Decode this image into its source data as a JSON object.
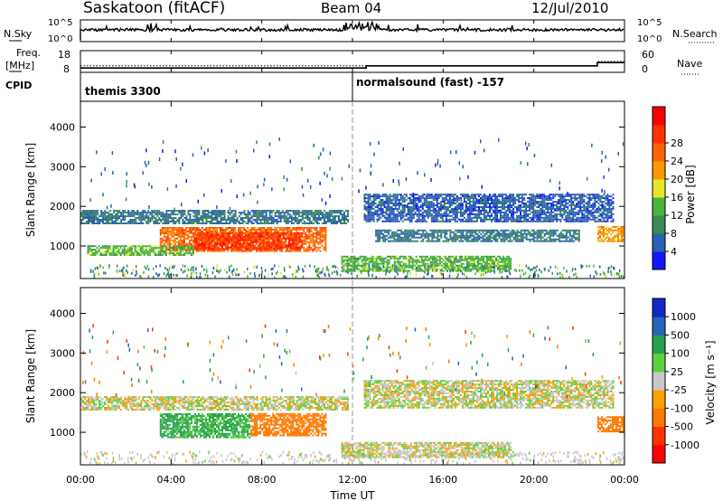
{
  "header": {
    "station": "Saskatoon (fitACF)",
    "beam": "Beam 04",
    "date": "12/Jul/2010"
  },
  "top_panels": {
    "noise_left_label": "N.Sky",
    "noise_right_label": "N.Search",
    "noise_left_ticks": [
      "10^5",
      "10^0"
    ],
    "noise_right_ticks": [
      "10^5",
      "10^0"
    ],
    "freq_label_1": "Freq.",
    "freq_label_2": "[MHz]",
    "freq_ticks": [
      "18",
      "8"
    ],
    "nave_label": "Nave",
    "nave_ticks": [
      "60",
      "0"
    ],
    "cpid_label": "CPID",
    "cpid_modes": [
      {
        "name": "themis 3300",
        "start_hour": 0
      },
      {
        "name": "normalsound (fast) -157",
        "start_hour": 12
      }
    ]
  },
  "axes": {
    "time_label": "Time UT",
    "time_ticks": [
      "00:00",
      "04:00",
      "08:00",
      "12:00",
      "16:00",
      "20:00",
      "00:00"
    ],
    "range_label": "Slant Range [km]",
    "range_ticks": [
      "1000",
      "2000",
      "3000",
      "4000"
    ],
    "range_min_km": 180,
    "range_max_km": 4650,
    "time_range_hours": [
      0,
      24
    ]
  },
  "power_colorbar": {
    "label": "Power [dB]",
    "ticks": [
      "4",
      "8",
      "12",
      "16",
      "20",
      "24",
      "28"
    ],
    "colors": [
      "#1414ff",
      "#2a5fb4",
      "#3a8a5a",
      "#48b43c",
      "#e6e628",
      "#ff9600",
      "#ff6400",
      "#ff3200",
      "#ff0000"
    ]
  },
  "velocity_colorbar": {
    "label": "Velocity [m s⁻¹]",
    "ticks": [
      "1000",
      "500",
      "100",
      "25",
      "-25",
      "-100",
      "-500",
      "-1000"
    ],
    "colors": [
      "#1428c8",
      "#2864b4",
      "#28a050",
      "#5ad23c",
      "#c8c8c8",
      "#ffa000",
      "#ff7800",
      "#ff3200",
      "#ff0000"
    ]
  },
  "chart_data": {
    "type": "heatmap",
    "description_free": true,
    "power_echo_regions_db": [
      {
        "t_start": 0.0,
        "t_end": 11.8,
        "range_km": [
          1550,
          1900
        ],
        "power_db": 8
      },
      {
        "t_start": 3.5,
        "t_end": 10.8,
        "range_km": [
          850,
          1450
        ],
        "power_db": 26
      },
      {
        "t_start": 5.0,
        "t_end": 9.8,
        "range_km": [
          900,
          1350
        ],
        "power_db": 30
      },
      {
        "t_start": 0.3,
        "t_end": 5.0,
        "range_km": [
          750,
          1000
        ],
        "power_db": 14
      },
      {
        "t_start": 11.5,
        "t_end": 19.0,
        "range_km": [
          350,
          750
        ],
        "power_db": 14
      },
      {
        "t_start": 12.5,
        "t_end": 23.5,
        "range_km": [
          1600,
          2300
        ],
        "power_db": 6
      },
      {
        "t_start": 22.8,
        "t_end": 24.0,
        "range_km": [
          1100,
          1500
        ],
        "power_db": 22
      },
      {
        "t_start": 13.0,
        "t_end": 22.0,
        "range_km": [
          1100,
          1400
        ],
        "power_db": 8
      }
    ],
    "velocity_echo_regions_ms": [
      {
        "t_start": 0.0,
        "t_end": 11.8,
        "range_km": [
          1550,
          1900
        ],
        "velocity": 0
      },
      {
        "t_start": 3.5,
        "t_end": 7.5,
        "range_km": [
          850,
          1450
        ],
        "velocity": 120
      },
      {
        "t_start": 7.5,
        "t_end": 10.8,
        "range_km": [
          900,
          1450
        ],
        "velocity": -200
      },
      {
        "t_start": 11.5,
        "t_end": 19.0,
        "range_km": [
          350,
          750
        ],
        "velocity": 0
      },
      {
        "t_start": 12.5,
        "t_end": 23.5,
        "range_km": [
          1600,
          2300
        ],
        "velocity": 0
      },
      {
        "t_start": 22.8,
        "t_end": 24.0,
        "range_km": [
          1000,
          1400
        ],
        "velocity": -300
      }
    ],
    "frequency_mhz": [
      {
        "t_start": 0,
        "t_end": 12.6,
        "value": 10
      },
      {
        "t_start": 12.6,
        "t_end": 22.8,
        "value": 11
      },
      {
        "t_start": 22.8,
        "t_end": 24,
        "value": 12.5
      }
    ],
    "nave": [
      {
        "t_start": 0,
        "t_end": 22.8,
        "value": 18
      },
      {
        "t_start": 22.8,
        "t_end": 24,
        "value": 30
      }
    ]
  }
}
